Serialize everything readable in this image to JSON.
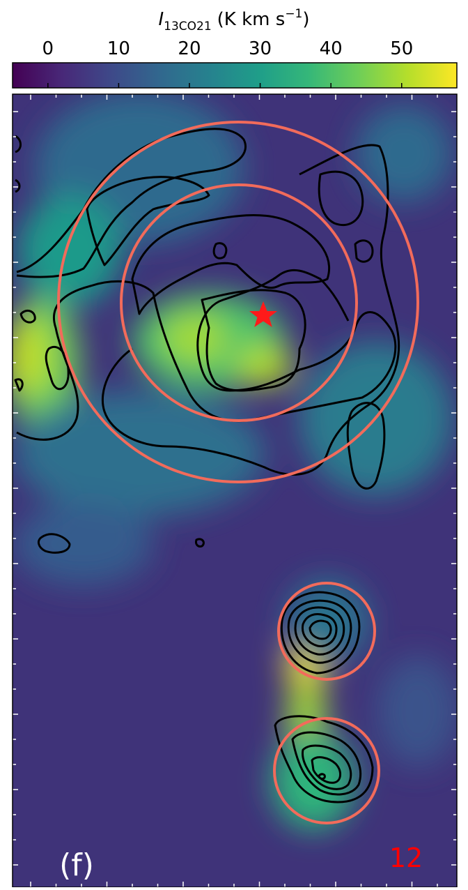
{
  "chart_data": {
    "type": "image",
    "colorbar_label": {
      "symbol": "I",
      "subscript": "13CO21",
      "unit": "(K km s",
      "exponent": "−1",
      "suffix": ")"
    },
    "colormap": "viridis",
    "clim": [
      -5,
      57.8
    ],
    "cticks": [
      0,
      10,
      20,
      30,
      40,
      50
    ],
    "panel_label": "(f)",
    "region_number": "12",
    "region_number_color": "#ff0000",
    "circle_color": "#f26b5b",
    "contour_color": "#000000"
  }
}
